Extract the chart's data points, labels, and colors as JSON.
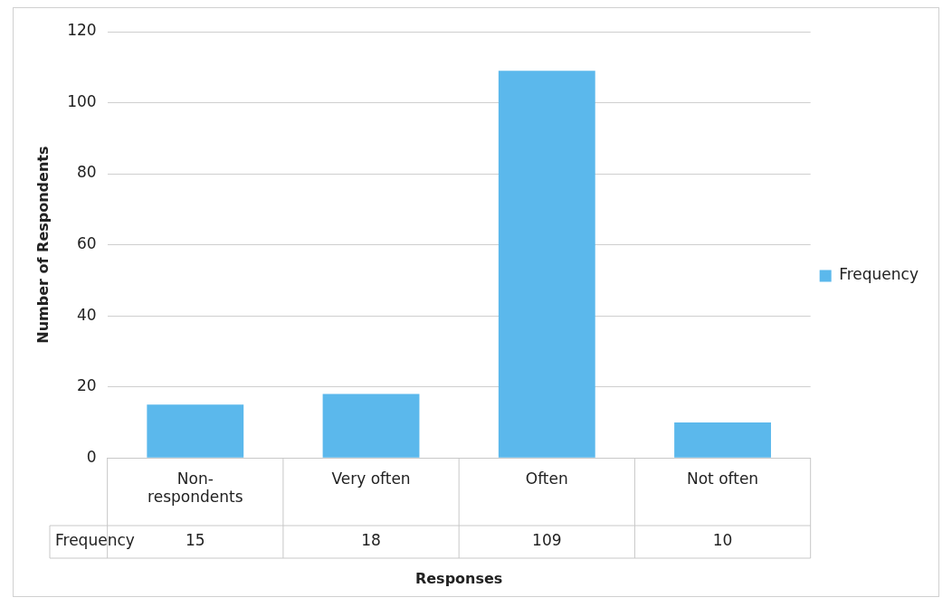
{
  "chart_data": {
    "type": "bar",
    "xlabel": "Responses",
    "ylabel": "Number of Respondents",
    "categories": [
      "Non-respondents",
      "Very often",
      "Often",
      "Not often"
    ],
    "series": [
      {
        "name": "Frequency",
        "color": "#5bb8ec",
        "values": [
          15,
          18,
          109,
          10
        ]
      }
    ],
    "ylim": [
      0,
      120
    ],
    "yticks": [
      0,
      20,
      40,
      60,
      80,
      100,
      120
    ],
    "grid": "y",
    "legend": "right",
    "data_labels": true
  }
}
